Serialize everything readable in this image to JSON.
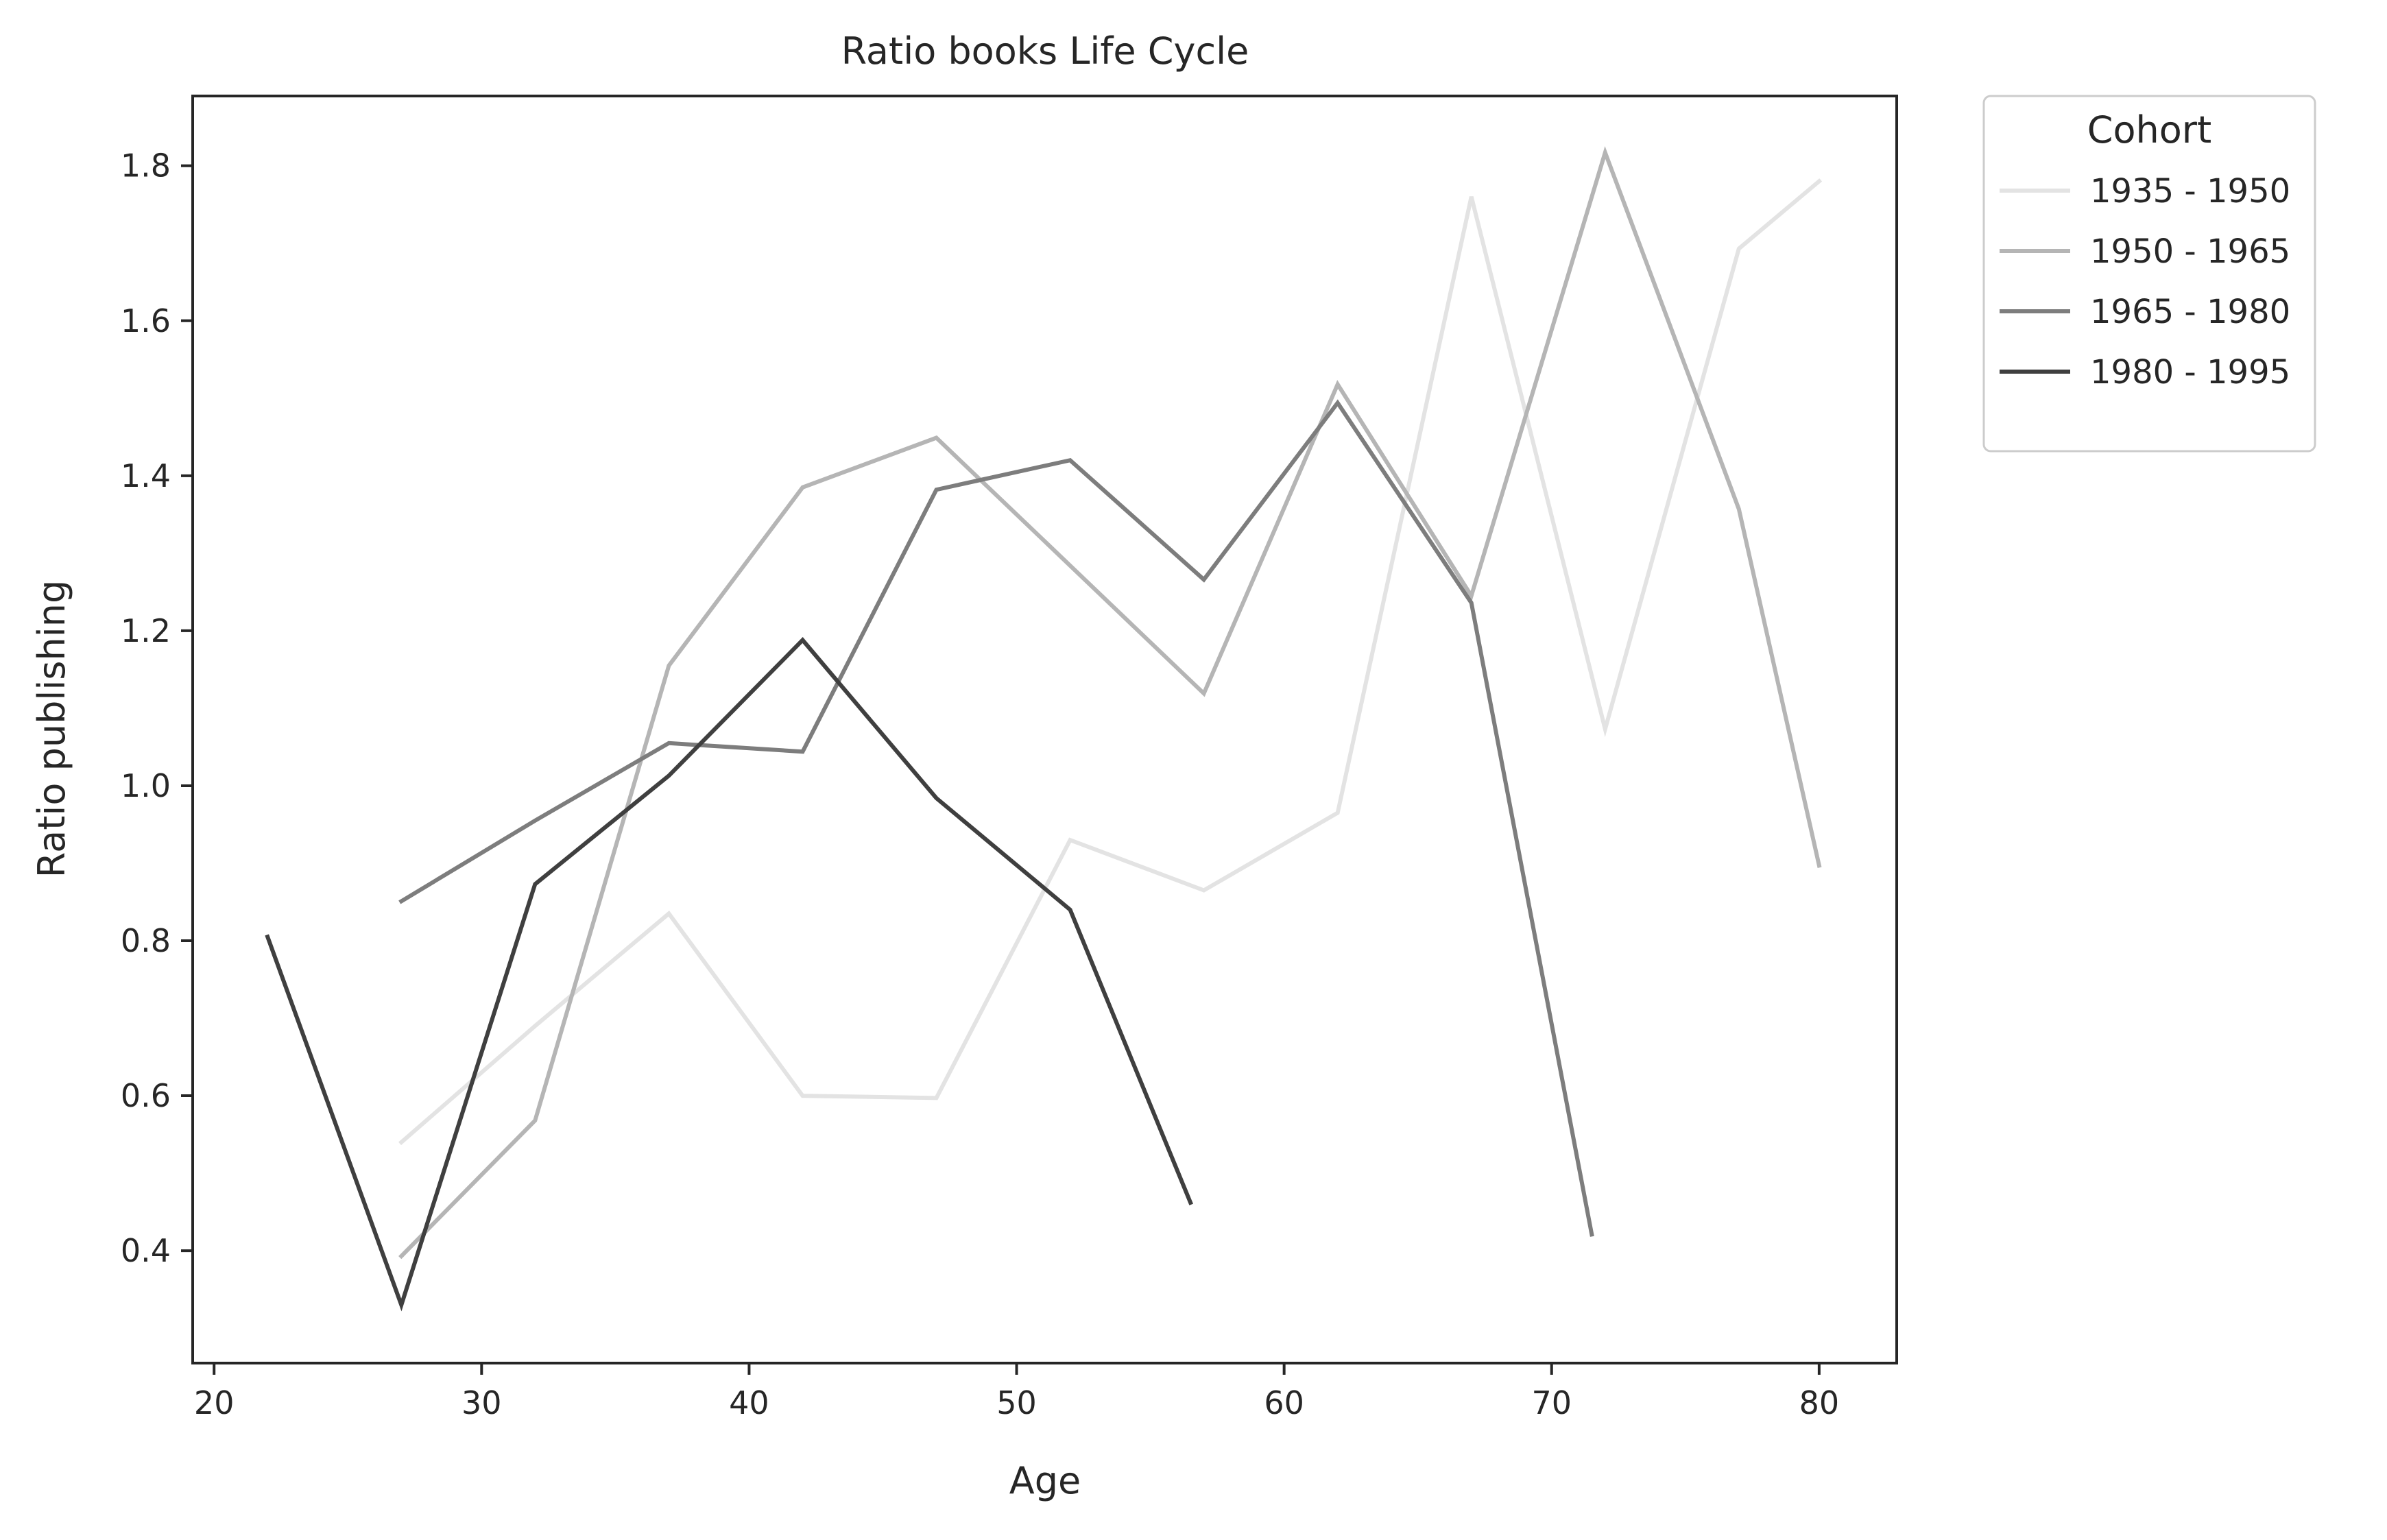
{
  "chart_data": {
    "type": "line",
    "title": "Ratio books Life Cycle",
    "xlabel": "Age",
    "ylabel": "Ratio publishing",
    "xlim": [
      19.2,
      82.9
    ],
    "ylim": [
      0.255,
      1.89
    ],
    "xticks": [
      20,
      30,
      40,
      50,
      60,
      70,
      80
    ],
    "yticks": [
      0.4,
      0.6,
      0.8,
      1.0,
      1.2,
      1.4,
      1.6,
      1.8
    ],
    "xtick_labels": [
      "20",
      "30",
      "40",
      "50",
      "60",
      "70",
      "80"
    ],
    "ytick_labels": [
      "0.4",
      "0.6",
      "0.8",
      "1.0",
      "1.2",
      "1.4",
      "1.6",
      "1.8"
    ],
    "grid": false,
    "legend": {
      "title": "Cohort",
      "placement": "outside-top-right"
    },
    "series": [
      {
        "name": "1935 - 1950",
        "color": "#e3e3e3",
        "points": [
          [
            27,
            0.54
          ],
          [
            32,
            0.69
          ],
          [
            37,
            0.835
          ],
          [
            42,
            0.6
          ],
          [
            47,
            0.597
          ],
          [
            52,
            0.93
          ],
          [
            57,
            0.865
          ],
          [
            62,
            0.965
          ],
          [
            67,
            1.76
          ],
          [
            72,
            1.073
          ],
          [
            77,
            1.693
          ],
          [
            80,
            1.78
          ]
        ]
      },
      {
        "name": "1950 - 1965",
        "color": "#b5b5b5",
        "points": [
          [
            27,
            0.393
          ],
          [
            32,
            0.568
          ],
          [
            37,
            1.155
          ],
          [
            42,
            1.385
          ],
          [
            47,
            1.449
          ],
          [
            52,
            1.284
          ],
          [
            57,
            1.119
          ],
          [
            62,
            1.518
          ],
          [
            67,
            1.245
          ],
          [
            72,
            1.817
          ],
          [
            77,
            1.357
          ],
          [
            80,
            0.897
          ]
        ]
      },
      {
        "name": "1965 - 1980",
        "color": "#7d7d7d",
        "points": [
          [
            27,
            0.851
          ],
          [
            32,
            0.955
          ],
          [
            37,
            1.055
          ],
          [
            42,
            1.044
          ],
          [
            47,
            1.382
          ],
          [
            52,
            1.42
          ],
          [
            57,
            1.266
          ],
          [
            62,
            1.494
          ],
          [
            67,
            1.236
          ],
          [
            71.5,
            0.421
          ]
        ]
      },
      {
        "name": "1980 - 1995",
        "color": "#3f3f3f",
        "points": [
          [
            22,
            0.805
          ],
          [
            27,
            0.33
          ],
          [
            32,
            0.873
          ],
          [
            37,
            1.013
          ],
          [
            42,
            1.188
          ],
          [
            47,
            0.984
          ],
          [
            52,
            0.84
          ],
          [
            56.5,
            0.462
          ]
        ]
      }
    ]
  }
}
